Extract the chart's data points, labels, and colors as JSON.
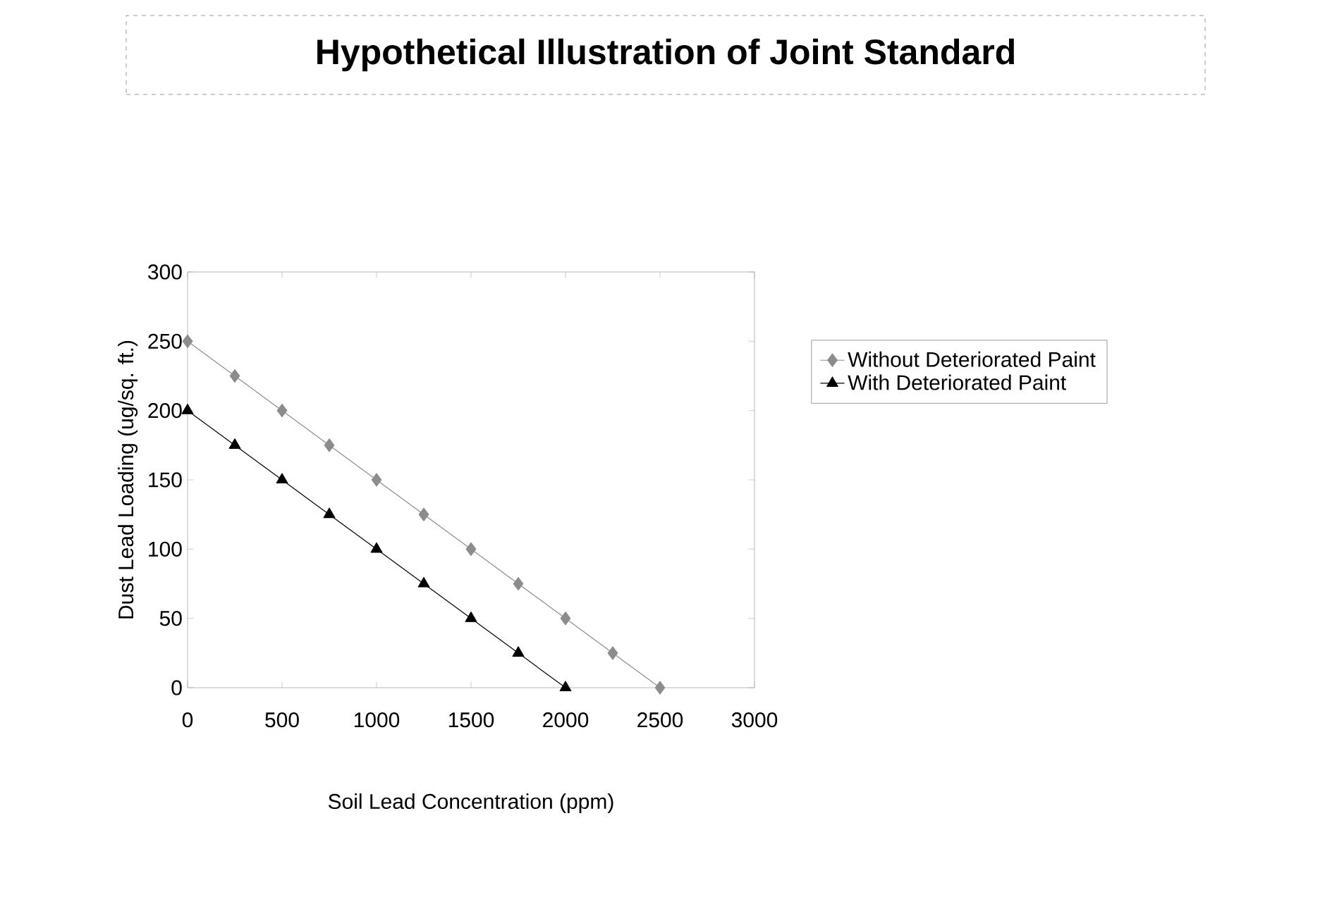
{
  "chart_data": {
    "type": "line",
    "title": "Hypothetical Illustration of Joint Standard",
    "xlabel": "Soil Lead Concentration (ppm)",
    "ylabel": "Dust Lead Loading (ug/sq. ft.)",
    "xlim": [
      0,
      3000
    ],
    "ylim": [
      0,
      300
    ],
    "xticks": [
      0,
      500,
      1000,
      1500,
      2000,
      2500,
      3000
    ],
    "yticks": [
      0,
      50,
      100,
      150,
      200,
      250,
      300
    ],
    "legend": "right",
    "line_style": "solid",
    "series": [
      {
        "name": "Without Deteriorated Paint",
        "color": "#8c8c8c",
        "marker": "diamond",
        "x": [
          0,
          250,
          500,
          750,
          1000,
          1250,
          1500,
          1750,
          2000,
          2250,
          2500
        ],
        "values": [
          250,
          225,
          200,
          175,
          150,
          125,
          100,
          75,
          50,
          25,
          0
        ]
      },
      {
        "name": "With Deteriorated Paint",
        "color": "#000000",
        "marker": "triangle",
        "x": [
          0,
          250,
          500,
          750,
          1000,
          1250,
          1500,
          1750,
          2000
        ],
        "values": [
          200,
          175,
          150,
          125,
          100,
          75,
          50,
          25,
          0
        ]
      }
    ]
  }
}
